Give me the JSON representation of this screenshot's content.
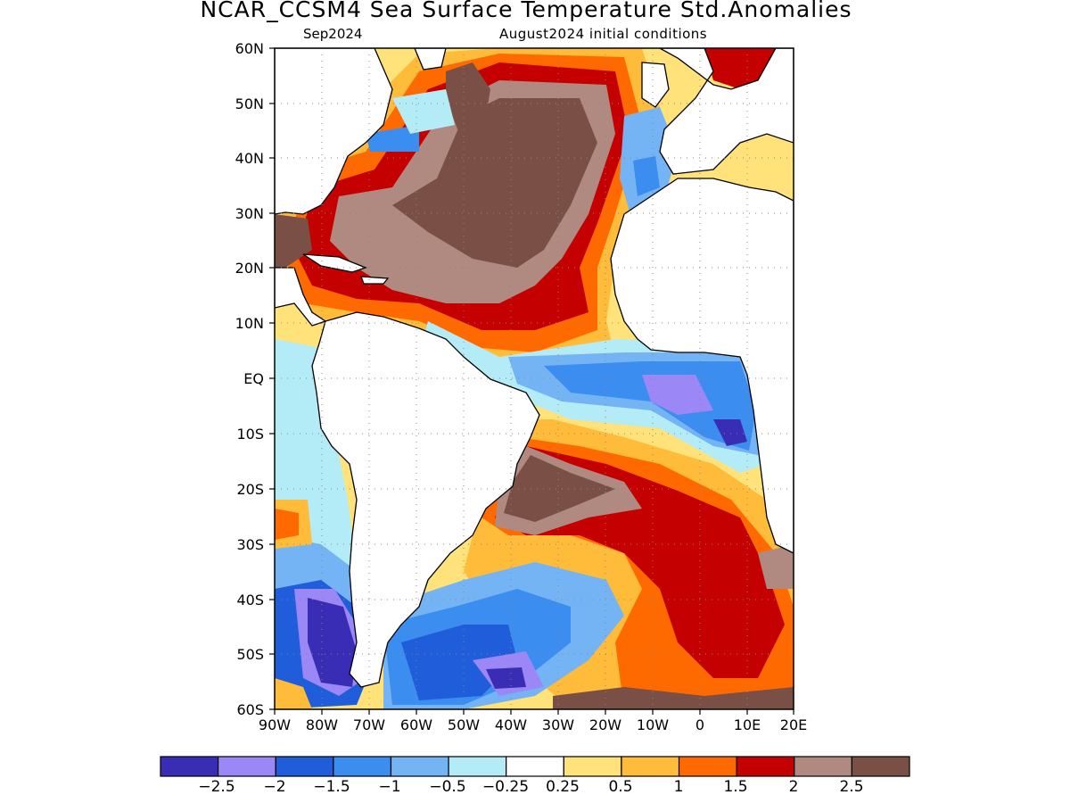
{
  "header": {
    "title": "NCAR_CCSM4 Sea Surface Temperature Std.Anomalies",
    "subtitle_left": "Sep2024",
    "subtitle_right": "August2024 initial conditions"
  },
  "map": {
    "lat_labels": [
      "60N",
      "50N",
      "40N",
      "30N",
      "20N",
      "10N",
      "EQ",
      "10S",
      "20S",
      "30S",
      "40S",
      "50S",
      "60S"
    ],
    "lon_labels": [
      "90W",
      "80W",
      "70W",
      "60W",
      "50W",
      "40W",
      "30W",
      "20W",
      "10W",
      "0",
      "10E",
      "20E"
    ],
    "extent": {
      "lon_min": -90,
      "lon_max": 20,
      "lat_min": -60,
      "lat_max": 60
    },
    "grid": "dotted",
    "colors": {
      "land": "#ffffff",
      "coast": "#000000"
    }
  },
  "colorbar": {
    "colors": [
      "#3a2db5",
      "#9b87f5",
      "#1f5ddb",
      "#3b8df0",
      "#74b4f5",
      "#b3ecf7",
      "#ffffff",
      "#ffe27a",
      "#ffbb3a",
      "#ff6a00",
      "#c40000",
      "#b08a80",
      "#7a4f45"
    ],
    "labels": [
      "-2.5",
      "-2",
      "-1.5",
      "-1",
      "-0.5",
      "-0.25",
      "0.25",
      "0.5",
      "1",
      "1.5",
      "2",
      "2.5"
    ]
  }
}
